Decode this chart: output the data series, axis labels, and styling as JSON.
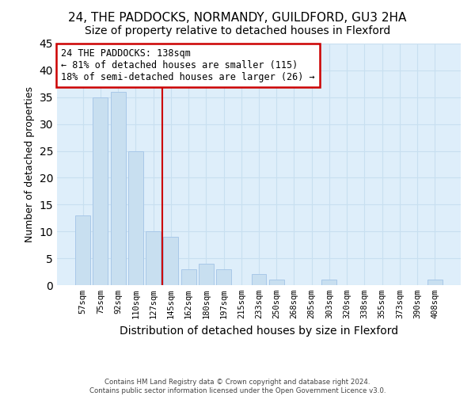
{
  "title1": "24, THE PADDOCKS, NORMANDY, GUILDFORD, GU3 2HA",
  "title2": "Size of property relative to detached houses in Flexford",
  "xlabel": "Distribution of detached houses by size in Flexford",
  "ylabel": "Number of detached properties",
  "bar_labels": [
    "57sqm",
    "75sqm",
    "92sqm",
    "110sqm",
    "127sqm",
    "145sqm",
    "162sqm",
    "180sqm",
    "197sqm",
    "215sqm",
    "233sqm",
    "250sqm",
    "268sqm",
    "285sqm",
    "303sqm",
    "320sqm",
    "338sqm",
    "355sqm",
    "373sqm",
    "390sqm",
    "408sqm"
  ],
  "bar_values": [
    13,
    35,
    36,
    25,
    10,
    9,
    3,
    4,
    3,
    0,
    2,
    1,
    0,
    0,
    1,
    0,
    0,
    0,
    0,
    0,
    1
  ],
  "bar_color": "#c8dff0",
  "bar_edge_color": "#a8c8e8",
  "vline_color": "#cc0000",
  "annotation_line1": "24 THE PADDOCKS: 138sqm",
  "annotation_line2": "← 81% of detached houses are smaller (115)",
  "annotation_line3": "18% of semi-detached houses are larger (26) →",
  "annotation_box_color": "white",
  "annotation_box_edge_color": "#cc0000",
  "ylim": [
    0,
    45
  ],
  "yticks": [
    0,
    5,
    10,
    15,
    20,
    25,
    30,
    35,
    40,
    45
  ],
  "footer1": "Contains HM Land Registry data © Crown copyright and database right 2024.",
  "footer2": "Contains public sector information licensed under the Open Government Licence v3.0.",
  "grid_color": "#c8dff0",
  "bg_color": "#deeefa",
  "title1_fontsize": 11,
  "title2_fontsize": 10
}
